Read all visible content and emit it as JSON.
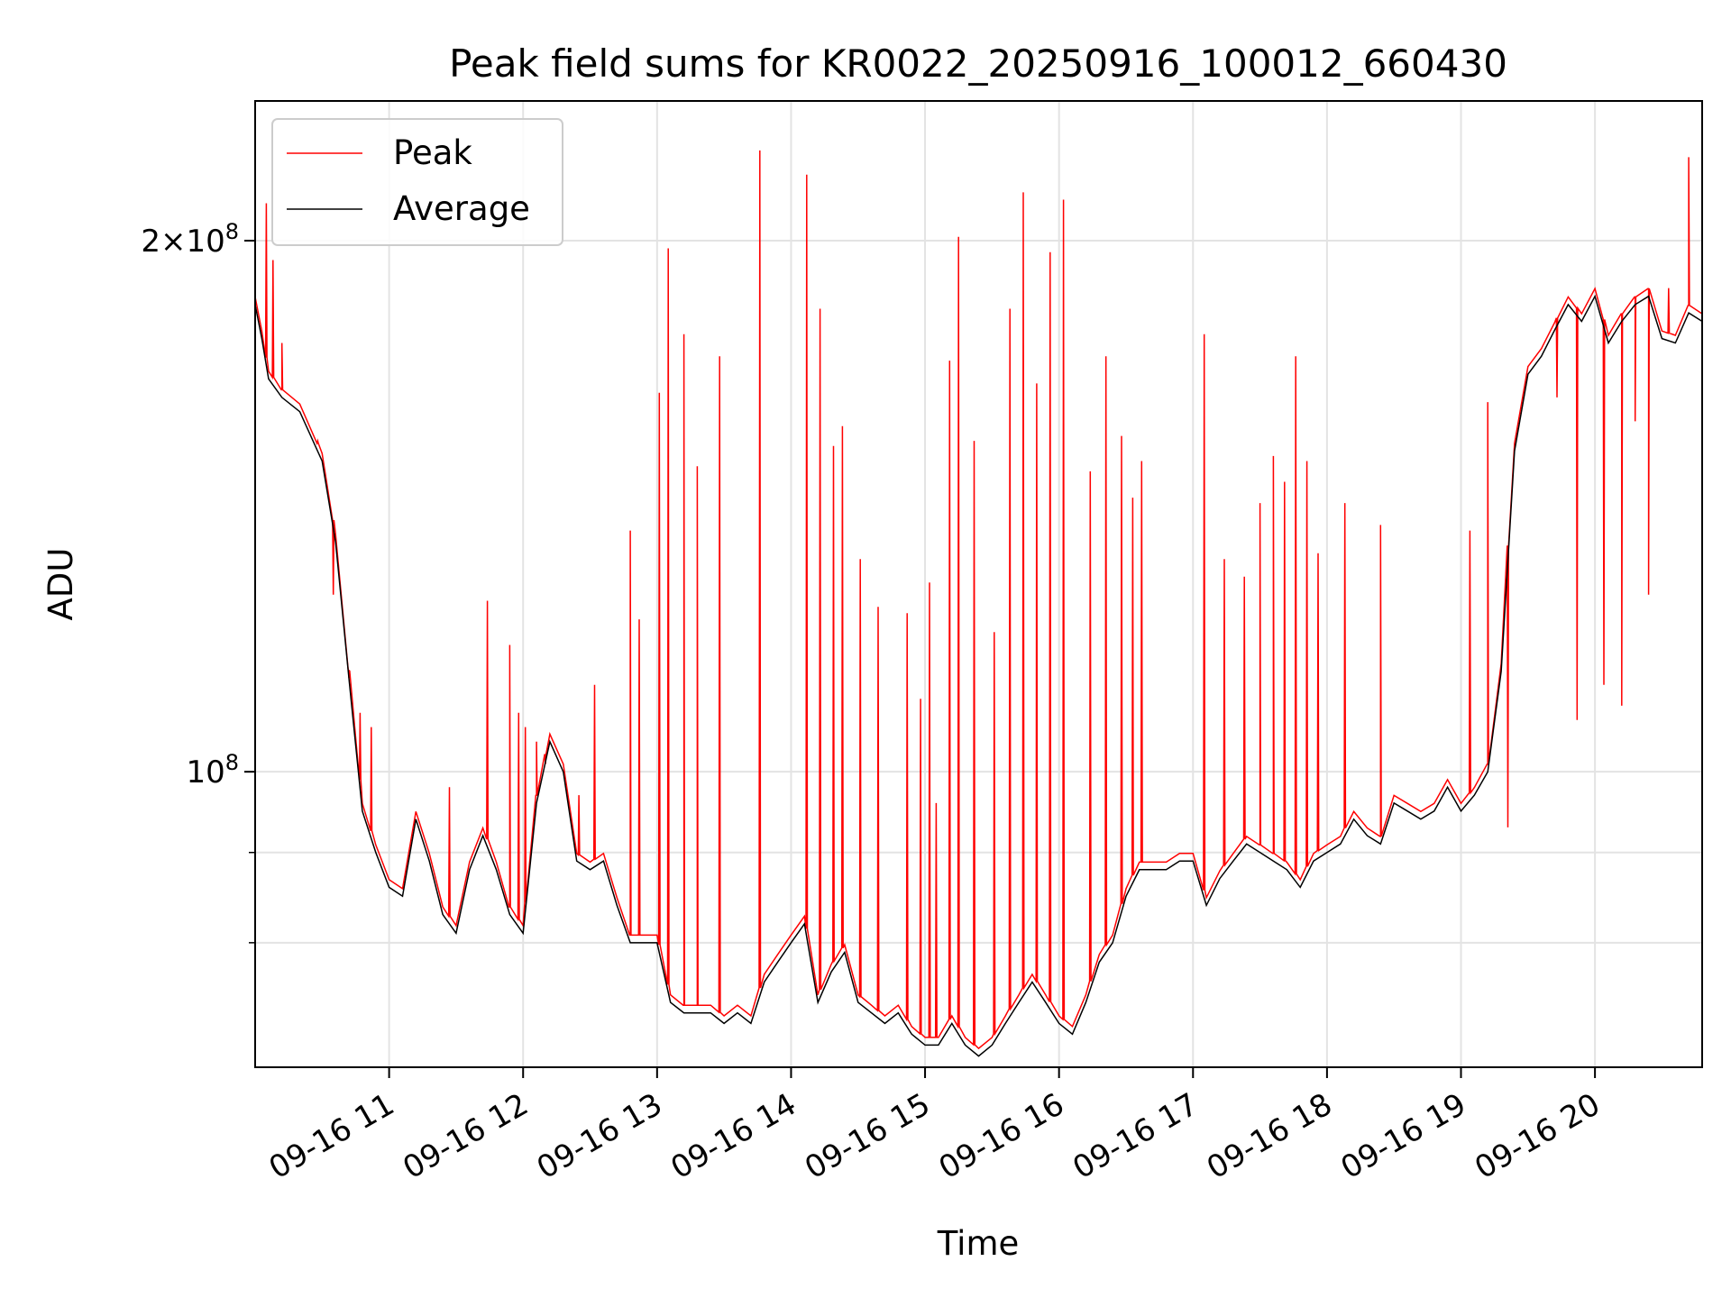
{
  "chart_data": {
    "type": "line",
    "title": "Peak field sums for KR0022_20250916_100012_660430",
    "xlabel": "Time",
    "ylabel": "ADU",
    "yscale": "log",
    "ylim": [
      68000000,
      240000000
    ],
    "xlim": [
      "2025-09-16 10:00",
      "2025-09-16 20:48"
    ],
    "x_ticks": [
      "09-16 11",
      "09-16 12",
      "09-16 13",
      "09-16 14",
      "09-16 15",
      "09-16 16",
      "09-16 17",
      "09-16 18",
      "09-16 19",
      "09-16 20"
    ],
    "y_ticks": [
      {
        "value": 100000000,
        "label": "10^8"
      },
      {
        "value": 200000000,
        "label": "2×10^8"
      }
    ],
    "grid": true,
    "legend_position": "top-left",
    "series": [
      {
        "name": "Average",
        "color": "#000000",
        "x": [
          "10:00",
          "10:03",
          "10:06",
          "10:12",
          "10:20",
          "10:30",
          "10:36",
          "10:42",
          "10:48",
          "10:54",
          "11:00",
          "11:06",
          "11:12",
          "11:18",
          "11:24",
          "11:30",
          "11:36",
          "11:42",
          "11:48",
          "11:54",
          "12:00",
          "12:06",
          "12:12",
          "12:18",
          "12:24",
          "12:30",
          "12:36",
          "12:42",
          "12:48",
          "12:54",
          "13:00",
          "13:06",
          "13:12",
          "13:18",
          "13:24",
          "13:30",
          "13:36",
          "13:42",
          "13:48",
          "13:54",
          "14:00",
          "14:06",
          "14:12",
          "14:18",
          "14:24",
          "14:30",
          "14:36",
          "14:42",
          "14:48",
          "14:54",
          "15:00",
          "15:06",
          "15:12",
          "15:18",
          "15:24",
          "15:30",
          "15:36",
          "15:42",
          "15:48",
          "15:54",
          "16:00",
          "16:06",
          "16:12",
          "16:18",
          "16:24",
          "16:30",
          "16:36",
          "16:42",
          "16:48",
          "16:54",
          "17:00",
          "17:06",
          "17:12",
          "17:18",
          "17:24",
          "17:30",
          "17:36",
          "17:42",
          "17:48",
          "17:54",
          "18:00",
          "18:06",
          "18:12",
          "18:18",
          "18:24",
          "18:30",
          "18:36",
          "18:42",
          "18:48",
          "18:54",
          "19:00",
          "19:06",
          "19:12",
          "19:18",
          "19:24",
          "19:30",
          "19:36",
          "19:42",
          "19:48",
          "19:54",
          "20:00",
          "20:06",
          "20:12",
          "20:18",
          "20:24",
          "20:30",
          "20:36",
          "20:42",
          "20:48"
        ],
        "y": [
          184000000,
          176000000,
          167000000,
          163000000,
          160000000,
          150000000,
          135000000,
          113000000,
          95000000,
          90000000,
          86000000,
          85000000,
          94000000,
          89000000,
          83000000,
          81000000,
          88000000,
          92000000,
          88000000,
          83000000,
          81000000,
          96000000,
          104000000,
          100000000,
          89000000,
          88000000,
          89000000,
          84000000,
          80000000,
          80000000,
          80000000,
          74000000,
          73000000,
          73000000,
          73000000,
          72000000,
          73000000,
          72000000,
          76000000,
          78000000,
          80000000,
          82000000,
          74000000,
          77000000,
          79000000,
          74000000,
          73000000,
          72000000,
          73000000,
          71000000,
          70000000,
          70000000,
          72000000,
          70000000,
          69000000,
          70000000,
          72000000,
          74000000,
          76000000,
          74000000,
          72000000,
          71000000,
          74000000,
          78000000,
          80000000,
          85000000,
          88000000,
          88000000,
          88000000,
          89000000,
          89000000,
          84000000,
          87000000,
          89000000,
          91000000,
          90000000,
          89000000,
          88000000,
          86000000,
          89000000,
          90000000,
          91000000,
          94000000,
          92000000,
          91000000,
          96000000,
          95000000,
          94000000,
          95000000,
          98000000,
          95000000,
          97000000,
          100000000,
          114000000,
          152000000,
          168000000,
          172000000,
          178000000,
          184000000,
          180000000,
          186000000,
          175000000,
          180000000,
          184000000,
          186000000,
          176000000,
          175000000,
          182000000,
          180000000
        ]
      },
      {
        "name": "Peak",
        "color": "#ff0000",
        "spike_times": [
          "10:05",
          "10:08",
          "10:12",
          "10:28",
          "10:35",
          "10:42",
          "10:47",
          "10:52",
          "11:27",
          "11:44",
          "11:54",
          "11:58",
          "12:01",
          "12:06",
          "12:10",
          "12:25",
          "12:32",
          "12:48",
          "12:52",
          "13:01",
          "13:05",
          "13:12",
          "13:18",
          "13:28",
          "13:46",
          "14:07",
          "14:13",
          "14:19",
          "14:23",
          "14:31",
          "14:39",
          "14:52",
          "14:58",
          "15:02",
          "15:05",
          "15:11",
          "15:15",
          "15:22",
          "15:31",
          "15:38",
          "15:44",
          "15:50",
          "15:56",
          "16:02",
          "16:14",
          "16:21",
          "16:28",
          "16:33",
          "16:37",
          "17:05",
          "17:14",
          "17:23",
          "17:30",
          "17:36",
          "17:41",
          "17:46",
          "17:51",
          "17:56",
          "18:08",
          "18:24",
          "19:04",
          "19:12",
          "19:21",
          "19:43",
          "19:52",
          "20:04",
          "20:12",
          "20:18",
          "20:24",
          "20:33",
          "20:42"
        ],
        "spike_values": [
          210000000,
          195000000,
          175000000,
          154000000,
          126000000,
          113000000,
          108000000,
          106000000,
          98000000,
          125000000,
          118000000,
          108000000,
          106000000,
          104000000,
          101000000,
          97000000,
          112000000,
          137000000,
          122000000,
          164000000,
          198000000,
          177000000,
          149000000,
          172000000,
          225000000,
          218000000,
          183000000,
          153000000,
          157000000,
          132000000,
          124000000,
          123000000,
          110000000,
          128000000,
          96000000,
          171000000,
          201000000,
          154000000,
          120000000,
          183000000,
          213000000,
          166000000,
          197000000,
          211000000,
          148000000,
          172000000,
          155000000,
          143000000,
          150000000,
          177000000,
          132000000,
          129000000,
          142000000,
          151000000,
          146000000,
          172000000,
          150000000,
          133000000,
          142000000,
          138000000,
          137000000,
          162000000,
          93000000,
          163000000,
          107000000,
          112000000,
          109000000,
          158000000,
          126000000,
          188000000,
          223000000
        ]
      }
    ]
  }
}
